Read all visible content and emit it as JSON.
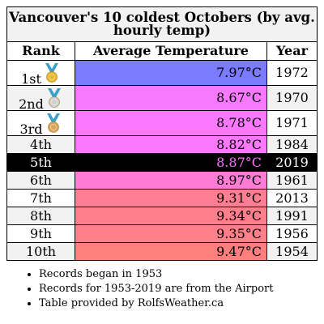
{
  "title": "Vancouver's 10 coldest Octobers (by avg. hourly temp)",
  "headers": {
    "rank": "Rank",
    "temp": "Average Temperature",
    "year": "Year"
  },
  "rows": [
    {
      "rank": "1st",
      "temp": "7.97°C",
      "year": "1972",
      "medal": "gold",
      "color": "#7b7bff"
    },
    {
      "rank": "2nd",
      "temp": "8.67°C",
      "year": "1970",
      "medal": "silver",
      "color": "#f779ff"
    },
    {
      "rank": "3rd",
      "temp": "8.78°C",
      "year": "1971",
      "medal": "bronze",
      "color": "#fb78ff"
    },
    {
      "rank": "4th",
      "temp": "8.82°C",
      "year": "1984",
      "medal": "",
      "color": "#fc78ff"
    },
    {
      "rank": "5th",
      "temp": "8.87°C",
      "year": "2019",
      "medal": "",
      "color": "#000000"
    },
    {
      "rank": "6th",
      "temp": "8.97°C",
      "year": "1961",
      "medal": "",
      "color": "#ff7cd4"
    },
    {
      "rank": "7th",
      "temp": "9.31°C",
      "year": "2013",
      "medal": "",
      "color": "#ff7f92"
    },
    {
      "rank": "8th",
      "temp": "9.34°C",
      "year": "1991",
      "medal": "",
      "color": "#ff7f8d"
    },
    {
      "rank": "9th",
      "temp": "9.35°C",
      "year": "1956",
      "medal": "",
      "color": "#ff7f8b"
    },
    {
      "rank": "10th",
      "temp": "9.47°C",
      "year": "1954",
      "medal": "",
      "color": "#ff7f7f"
    }
  ],
  "notes": [
    "Records began in 1953",
    "Records for 1953-2019 are from the Airport",
    "Table provided by RolfsWeather.ca"
  ],
  "colors": {
    "gold": "#e8b72a",
    "silver": "#d0d0d0",
    "bronze": "#d9a35a",
    "ribbon": "#3aa0c8",
    "highlight_bg": "#000000",
    "highlight_temp": "#ff72ff"
  }
}
